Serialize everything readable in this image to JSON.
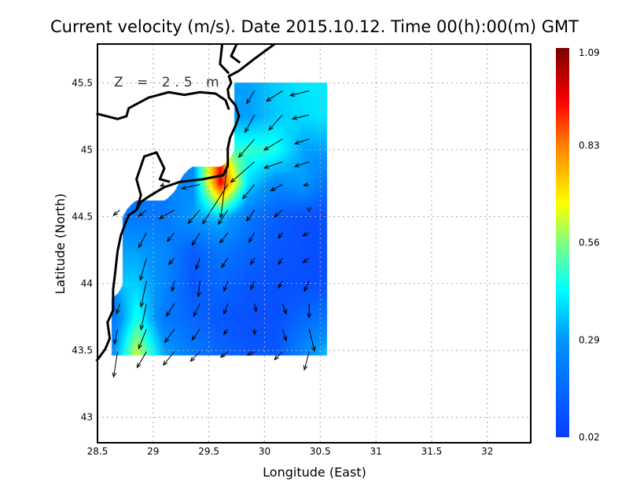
{
  "chart_data": {
    "type": "heatmap",
    "title": "Current velocity (m/s). Date 2015.10.12. Time 00(h):00(m) GMT",
    "xlabel": "Longitude (East)",
    "ylabel": "Latitude (North)",
    "annotation": "Z = 2.5 m",
    "xlim": [
      28.5,
      32.39
    ],
    "ylim": [
      42.81,
      45.79
    ],
    "xticks": [
      "28.5",
      "29",
      "29.5",
      "30",
      "30.5",
      "31",
      "31.5",
      "32"
    ],
    "xtick_values": [
      28.5,
      29,
      29.5,
      30,
      30.5,
      31,
      31.5,
      32
    ],
    "yticks": [
      "43",
      "43.5",
      "44",
      "44.5",
      "45",
      "45.5"
    ],
    "ytick_values": [
      43,
      43.5,
      44,
      44.5,
      45,
      45.5
    ],
    "grid": true,
    "colorbar": {
      "ticks": [
        "0.02",
        "0.29",
        "0.56",
        "0.83",
        "1.09"
      ],
      "range": [
        0.02,
        1.09
      ],
      "colors": [
        "#0a3cff",
        "#0096ff",
        "#00ffff",
        "#7fff7f",
        "#ffff00",
        "#ff8000",
        "#ff0000",
        "#7a0000"
      ]
    },
    "field_extent": {
      "lon": [
        28.63,
        30.55
      ],
      "lat": [
        43.47,
        45.5
      ]
    },
    "speed_grid": {
      "lon": [
        28.6,
        28.85,
        29.1,
        29.35,
        29.6,
        29.85,
        30.1,
        30.35,
        30.6
      ],
      "lat": [
        45.5,
        45.25,
        45.0,
        44.75,
        44.5,
        44.25,
        44.0,
        43.75,
        43.5
      ],
      "values": [
        [
          null,
          null,
          null,
          null,
          null,
          0.3,
          0.36,
          0.4,
          0.4
        ],
        [
          null,
          null,
          null,
          null,
          null,
          0.3,
          0.36,
          0.38,
          0.4
        ],
        [
          null,
          null,
          null,
          null,
          null,
          0.48,
          0.45,
          0.3,
          0.3
        ],
        [
          null,
          null,
          null,
          0.25,
          0.95,
          0.38,
          0.25,
          0.3,
          0.15
        ],
        [
          null,
          0.2,
          0.2,
          0.3,
          0.35,
          0.2,
          0.12,
          0.08,
          0.08
        ],
        [
          null,
          0.3,
          0.25,
          0.12,
          0.2,
          0.15,
          0.1,
          0.08,
          0.08
        ],
        [
          null,
          0.36,
          0.25,
          0.1,
          0.15,
          0.1,
          0.08,
          0.08,
          0.08
        ],
        [
          0.15,
          0.45,
          0.2,
          0.15,
          0.1,
          0.08,
          0.08,
          0.15,
          0.2
        ],
        [
          0.2,
          0.62,
          0.3,
          0.2,
          0.15,
          0.1,
          0.1,
          0.25,
          0.35
        ]
      ]
    },
    "vectors_unit": "m/s",
    "vectors": [
      {
        "lat": 45.44,
        "items": [
          [
            29.91,
            -0.1,
            -0.16
          ],
          [
            30.16,
            -0.2,
            -0.13
          ],
          [
            30.4,
            -0.24,
            -0.06
          ]
        ]
      },
      {
        "lat": 45.26,
        "items": [
          [
            29.91,
            -0.12,
            -0.22
          ],
          [
            30.16,
            -0.17,
            -0.19
          ],
          [
            30.4,
            -0.21,
            -0.05
          ]
        ]
      },
      {
        "lat": 45.08,
        "items": [
          [
            29.91,
            -0.2,
            -0.23
          ],
          [
            30.16,
            -0.23,
            -0.14
          ],
          [
            30.4,
            -0.18,
            -0.06
          ]
        ]
      },
      {
        "lat": 44.91,
        "items": [
          [
            29.67,
            -0.09,
            -0.71
          ],
          [
            29.91,
            -0.3,
            -0.26
          ],
          [
            30.16,
            -0.23,
            -0.08
          ],
          [
            30.4,
            -0.18,
            -0.06
          ]
        ]
      },
      {
        "lat": 44.74,
        "items": [
          [
            29.1,
            -0.05,
            -0.02
          ],
          [
            29.42,
            -0.23,
            -0.05
          ],
          [
            29.67,
            -0.32,
            -0.5
          ],
          [
            29.91,
            -0.15,
            -0.18
          ],
          [
            30.16,
            -0.15,
            -0.08
          ],
          [
            30.4,
            -0.07,
            -0.01
          ]
        ]
      },
      {
        "lat": 44.55,
        "items": [
          [
            28.7,
            -0.08,
            -0.07
          ],
          [
            28.94,
            -0.1,
            -0.08
          ],
          [
            29.19,
            -0.19,
            -0.11
          ],
          [
            29.42,
            -0.15,
            -0.17
          ],
          [
            29.67,
            -0.12,
            -0.18
          ],
          [
            29.91,
            -0.1,
            -0.14
          ],
          [
            30.16,
            -0.1,
            -0.09
          ],
          [
            30.4,
            0.0,
            -0.02
          ]
        ]
      },
      {
        "lat": 44.38,
        "items": [
          [
            28.94,
            -0.1,
            -0.19
          ],
          [
            29.19,
            -0.09,
            -0.11
          ],
          [
            29.42,
            -0.1,
            -0.16
          ],
          [
            29.67,
            -0.1,
            -0.13
          ],
          [
            29.91,
            -0.07,
            -0.12
          ],
          [
            30.16,
            -0.05,
            -0.07
          ],
          [
            30.4,
            -0.08,
            -0.04
          ]
        ]
      },
      {
        "lat": 44.19,
        "items": [
          [
            28.94,
            -0.08,
            -0.28
          ],
          [
            29.19,
            -0.07,
            -0.08
          ],
          [
            29.42,
            -0.05,
            -0.14
          ],
          [
            29.67,
            -0.08,
            -0.12
          ],
          [
            29.91,
            -0.05,
            -0.08
          ],
          [
            30.16,
            -0.05,
            -0.08
          ],
          [
            30.4,
            -0.08,
            -0.06
          ]
        ]
      },
      {
        "lat": 44.02,
        "items": [
          [
            28.94,
            -0.07,
            -0.33
          ],
          [
            29.19,
            -0.03,
            -0.13
          ],
          [
            29.42,
            -0.02,
            -0.2
          ],
          [
            29.67,
            -0.05,
            -0.13
          ],
          [
            29.91,
            -0.05,
            -0.11
          ],
          [
            30.16,
            -0.05,
            -0.09
          ],
          [
            30.4,
            -0.06,
            -0.13
          ]
        ]
      },
      {
        "lat": 43.85,
        "items": [
          [
            28.7,
            -0.04,
            -0.13
          ],
          [
            28.94,
            -0.07,
            -0.33
          ],
          [
            29.19,
            -0.1,
            -0.16
          ],
          [
            29.42,
            -0.08,
            -0.16
          ],
          [
            29.67,
            -0.05,
            -0.13
          ],
          [
            29.91,
            0.02,
            -0.1
          ],
          [
            30.16,
            0.05,
            -0.13
          ],
          [
            30.4,
            0.0,
            -0.18
          ]
        ]
      },
      {
        "lat": 43.66,
        "items": [
          [
            28.68,
            -0.04,
            -0.19
          ],
          [
            28.94,
            -0.1,
            -0.25
          ],
          [
            29.19,
            -0.12,
            -0.17
          ],
          [
            29.42,
            -0.1,
            -0.14
          ],
          [
            29.67,
            -0.05,
            -0.07
          ],
          [
            29.91,
            0.0,
            -0.07
          ],
          [
            30.16,
            0.05,
            -0.15
          ],
          [
            30.4,
            0.07,
            -0.28
          ]
        ]
      },
      {
        "lat": 43.49,
        "items": [
          [
            28.68,
            -0.05,
            -0.32
          ],
          [
            28.94,
            -0.12,
            -0.2
          ],
          [
            29.19,
            -0.14,
            -0.17
          ],
          [
            29.42,
            -0.12,
            -0.12
          ],
          [
            29.67,
            -0.09,
            -0.07
          ],
          [
            29.91,
            -0.09,
            -0.04
          ],
          [
            30.16,
            -0.1,
            -0.1
          ],
          [
            30.4,
            -0.06,
            -0.23
          ]
        ]
      }
    ],
    "coastlines": [
      [
        [
          28.49,
          43.42
        ],
        [
          28.57,
          43.51
        ],
        [
          28.61,
          43.59
        ],
        [
          28.59,
          43.71
        ],
        [
          28.64,
          43.8
        ],
        [
          28.64,
          43.95
        ],
        [
          28.66,
          44.09
        ],
        [
          28.68,
          44.24
        ],
        [
          28.71,
          44.36
        ],
        [
          28.75,
          44.45
        ],
        [
          28.78,
          44.51
        ],
        [
          28.85,
          44.55
        ],
        [
          28.89,
          44.61
        ],
        [
          28.96,
          44.65
        ],
        [
          29.1,
          44.72
        ],
        [
          29.24,
          44.76
        ],
        [
          29.45,
          44.78
        ],
        [
          29.63,
          44.81
        ],
        [
          29.67,
          44.88
        ],
        [
          29.67,
          45.01
        ],
        [
          29.69,
          45.09
        ],
        [
          29.74,
          45.18
        ],
        [
          29.77,
          45.25
        ],
        [
          29.74,
          45.33
        ],
        [
          29.68,
          45.39
        ],
        [
          29.67,
          45.45
        ],
        [
          29.7,
          45.5
        ],
        [
          29.68,
          45.55
        ],
        [
          29.77,
          45.59
        ],
        [
          29.91,
          45.68
        ],
        [
          30.09,
          45.79
        ]
      ],
      [
        [
          28.49,
          45.27
        ],
        [
          28.68,
          45.23
        ],
        [
          28.76,
          45.25
        ],
        [
          28.78,
          45.31
        ],
        [
          28.96,
          45.39
        ],
        [
          29.14,
          45.43
        ],
        [
          29.28,
          45.41
        ],
        [
          29.42,
          45.43
        ],
        [
          29.56,
          45.42
        ],
        [
          29.65,
          45.37
        ],
        [
          29.68,
          45.3
        ]
      ],
      [
        [
          28.85,
          44.55
        ],
        [
          28.89,
          44.66
        ],
        [
          28.85,
          44.78
        ],
        [
          28.92,
          44.95
        ],
        [
          29.03,
          44.98
        ],
        [
          29.1,
          44.86
        ],
        [
          29.06,
          44.78
        ],
        [
          29.15,
          44.76
        ]
      ],
      [
        [
          29.62,
          45.79
        ],
        [
          29.6,
          45.64
        ],
        [
          29.68,
          45.57
        ]
      ],
      [
        [
          29.75,
          45.79
        ],
        [
          29.7,
          45.7
        ],
        [
          29.78,
          45.65
        ]
      ]
    ]
  }
}
